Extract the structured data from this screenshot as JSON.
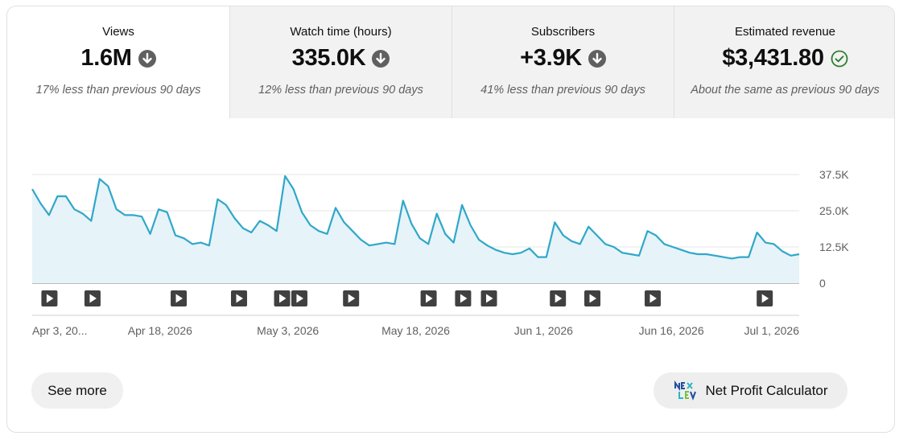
{
  "metrics": [
    {
      "label": "Views",
      "value": "1.6M",
      "note": "17% less than previous 90 days",
      "trend_icon": "arrow-down-circle-icon"
    },
    {
      "label": "Watch time (hours)",
      "value": "335.0K",
      "note": "12% less than previous 90 days",
      "trend_icon": "arrow-down-circle-icon"
    },
    {
      "label": "Subscribers",
      "value": "+3.9K",
      "note": "41% less than previous 90 days",
      "trend_icon": "arrow-down-circle-icon"
    },
    {
      "label": "Estimated revenue",
      "value": "$3,431.80",
      "note": "About the same as previous 90 days",
      "trend_icon": "check-circle-icon"
    }
  ],
  "colors": {
    "line": "#30a7c9",
    "area": "#e6f3f9",
    "trend_down": "#606060",
    "trend_ok": "#2e7d32"
  },
  "chart_data": {
    "type": "area",
    "x_start": "2026-04-03",
    "x_end": "2026-07-01",
    "x_tick_labels": [
      "Apr 3, 20...",
      "Apr 18, 2026",
      "May 3, 2026",
      "May 18, 2026",
      "Jun 1, 2026",
      "Jun 16, 2026",
      "Jul 1, 2026"
    ],
    "y_tick_labels": [
      "37.5K",
      "25.0K",
      "12.5K",
      "0"
    ],
    "y_ticks": [
      37500,
      25000,
      12500,
      0
    ],
    "ylim": [
      0,
      37500
    ],
    "grid": true,
    "series": [
      {
        "values": [
          32500,
          27500,
          23500,
          30000,
          30000,
          25500,
          24000,
          21500,
          36000,
          33500,
          25500,
          23500,
          23500,
          23000,
          17000,
          25500,
          24500,
          16500,
          15500,
          13500,
          14000,
          13000,
          29000,
          27000,
          22500,
          19000,
          17500,
          21500,
          20000,
          18000,
          37000,
          32500,
          24500,
          20000,
          18000,
          17000,
          26000,
          21000,
          18000,
          15000,
          13000,
          13500,
          14000,
          13500,
          28500,
          20500,
          15500,
          13500,
          24000,
          17000,
          14000,
          27000,
          20000,
          15000,
          13000,
          11500,
          10500,
          10000,
          10500,
          12000,
          9000,
          9000,
          21000,
          16500,
          14500,
          13500,
          19500,
          16500,
          13500,
          12500,
          10500,
          10000,
          9500,
          18000,
          16500,
          13500,
          12500,
          11500,
          10500,
          10000,
          10000,
          9500,
          9000,
          8500,
          9000,
          9000,
          17500,
          14000,
          13500,
          11000,
          9500,
          10000
        ]
      }
    ],
    "upload_markers": [
      "Apr 5, 2026",
      "Apr 10, 2026",
      "Apr 20, 2026",
      "Apr 27, 2026",
      "May 2, 2026",
      "May 4, 2026",
      "May 10, 2026",
      "May 19, 2026",
      "May 23, 2026",
      "May 26, 2026",
      "Jun 3, 2026",
      "Jun 7, 2026",
      "Jun 14, 2026",
      "Jun 27, 2026"
    ]
  },
  "buttons": {
    "see_more": "See more",
    "calculator": "Net Profit Calculator",
    "calculator_logo_text": "NEX LEV"
  }
}
